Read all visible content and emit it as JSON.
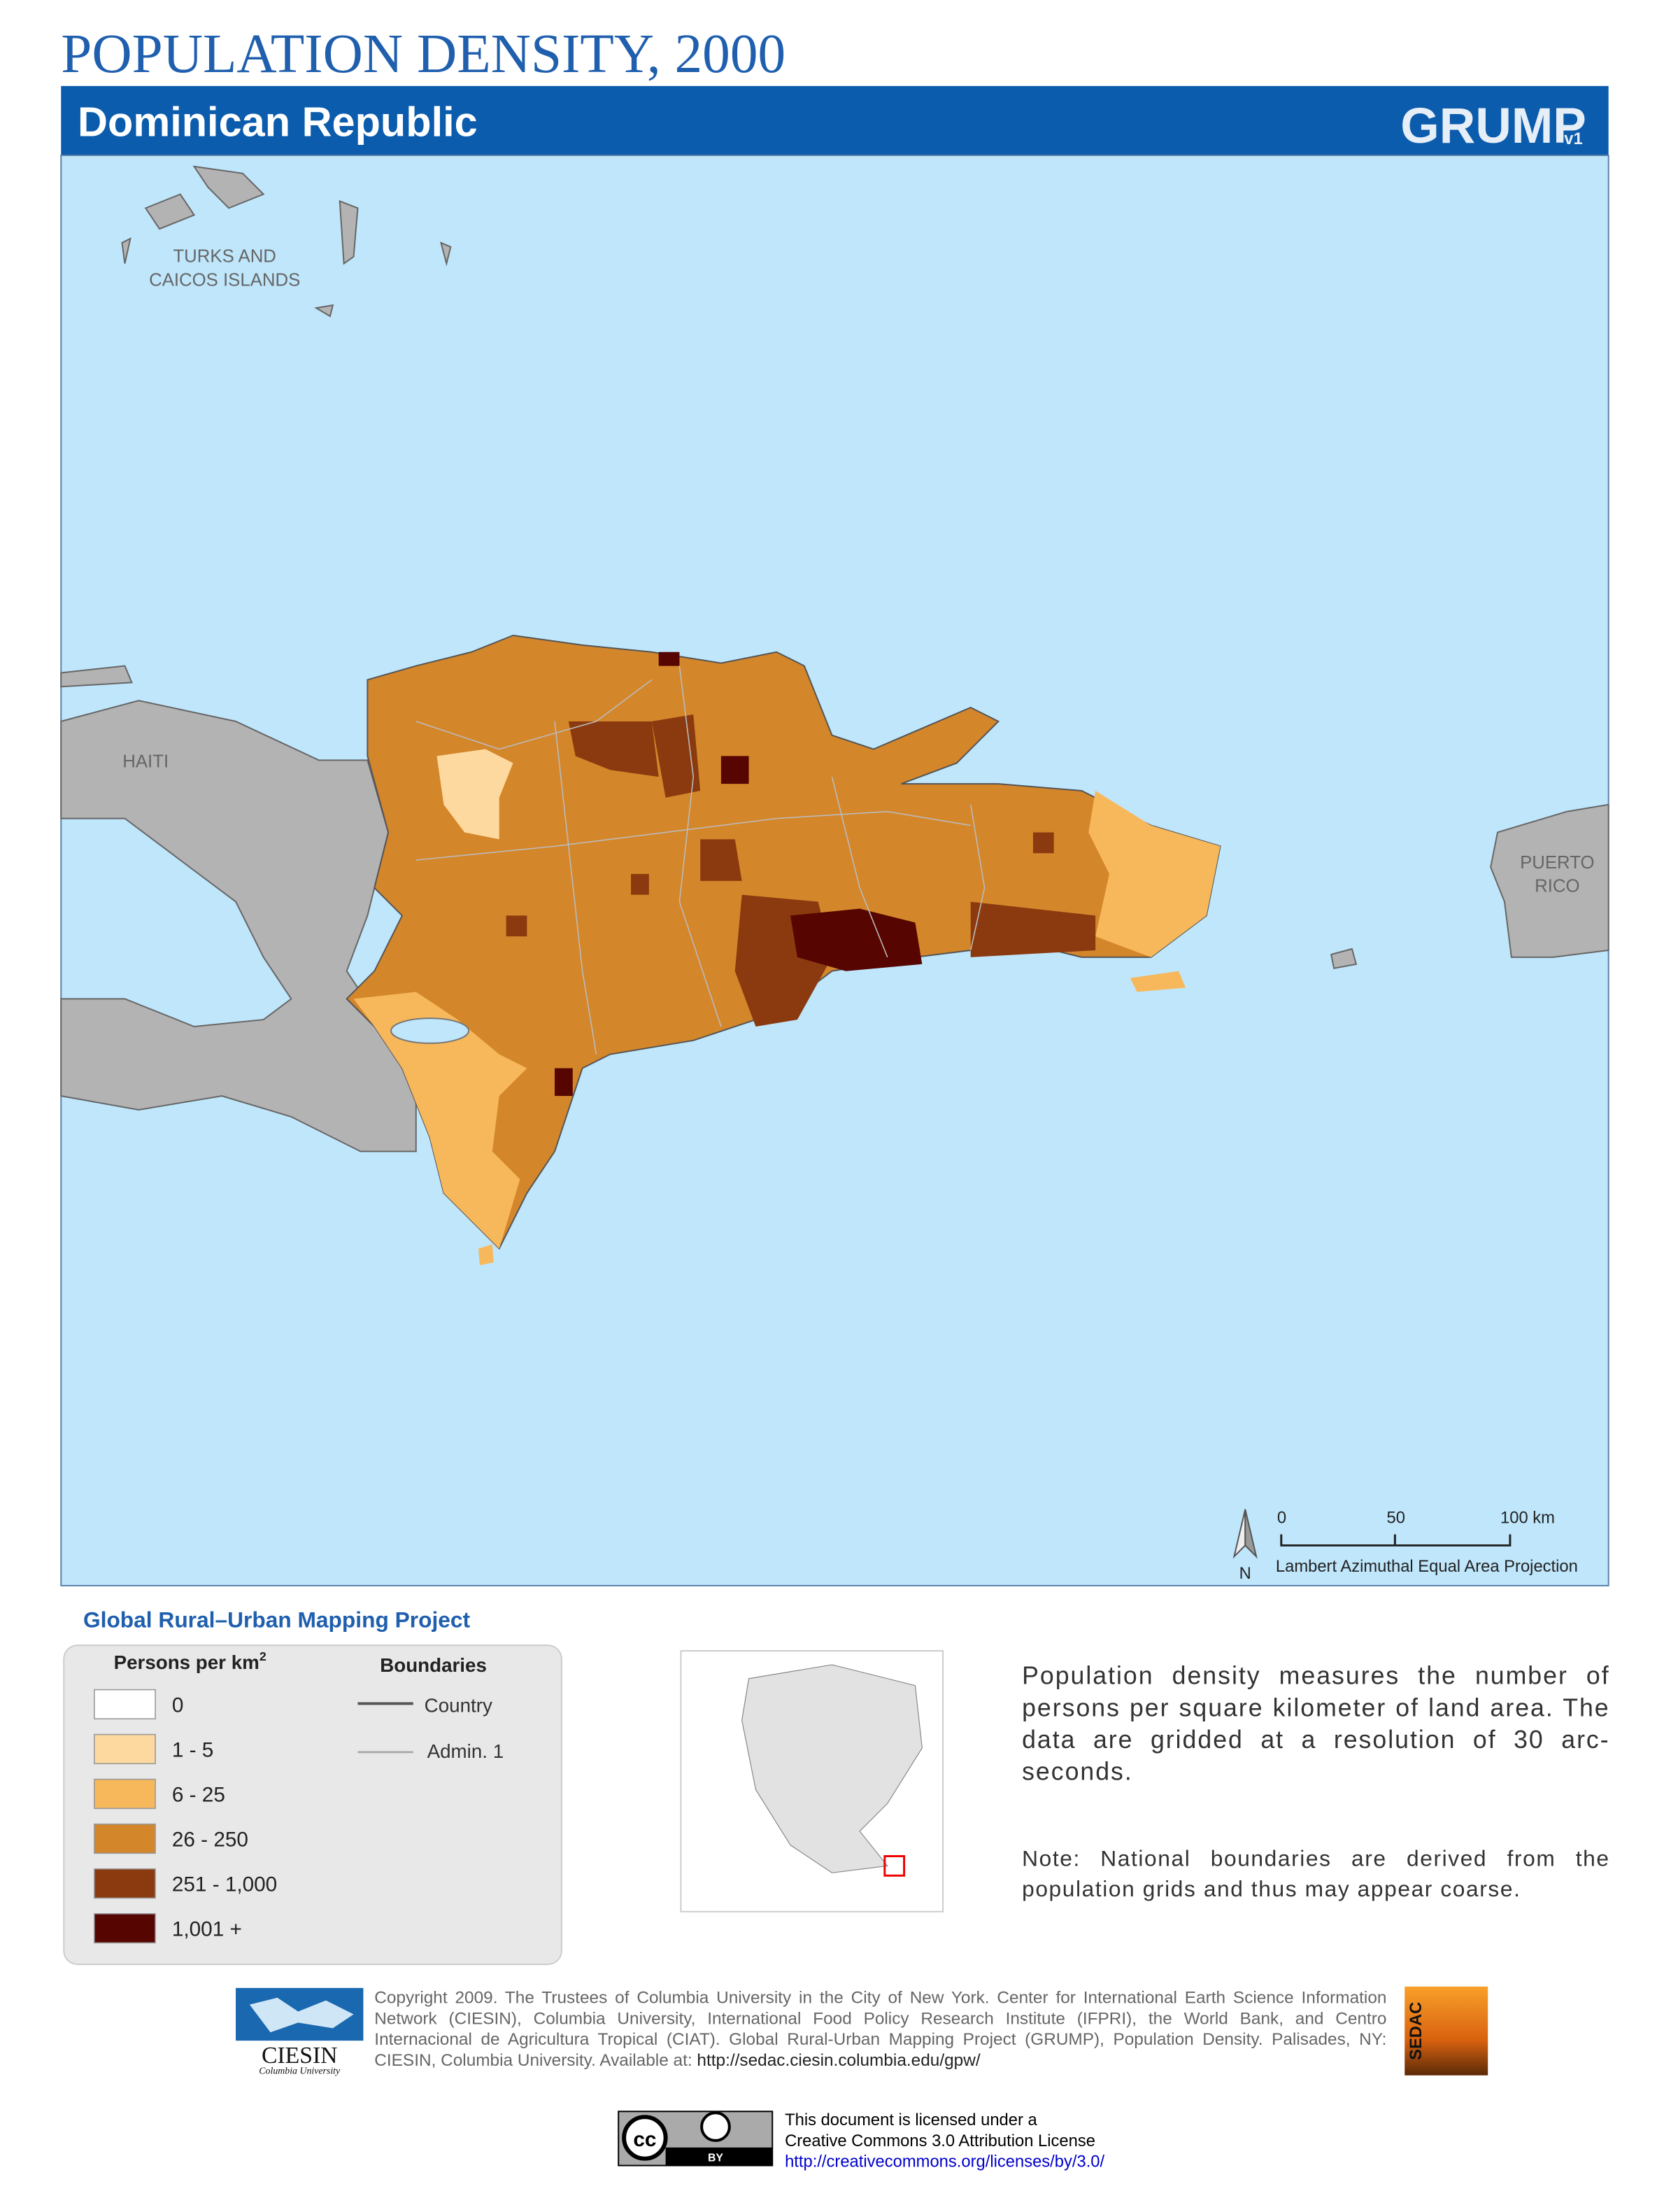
{
  "header": {
    "title": "POPULATION DENSITY, 2000",
    "country": "Dominican Republic",
    "logo": "GRUMP",
    "logo_version": "v1"
  },
  "map": {
    "labels": {
      "turks_caicos": [
        "TURKS AND",
        "CAICOS ISLANDS"
      ],
      "haiti": "HAITI",
      "puerto_rico": [
        "PUERTO",
        "RICO"
      ]
    },
    "north": "N",
    "scale": [
      "0",
      "50",
      "100 km"
    ],
    "projection": "Lambert Azimuthal Equal Area Projection"
  },
  "legend": {
    "project": "Global Rural–Urban Mapping Project",
    "density_title": "Persons per km",
    "density_superscript": "2",
    "classes": [
      {
        "label": "0",
        "color": "#ffffff"
      },
      {
        "label": "1 - 5",
        "color": "#fdd9a0"
      },
      {
        "label": "6 - 25",
        "color": "#f7b85c"
      },
      {
        "label": "26 - 250",
        "color": "#d4862a"
      },
      {
        "label": "251 - 1,000",
        "color": "#8b3a0f"
      },
      {
        "label": "1,001 +",
        "color": "#560500"
      }
    ],
    "boundaries_title": "Boundaries",
    "boundaries": [
      "Country",
      "Admin. 1"
    ]
  },
  "description": "Population density measures the number of persons per square kilometer of land area. The data are gridded at a resolution of 30 arc-seconds.",
  "note": "Note: National boundaries are derived from the population grids and thus may appear coarse.",
  "footer": {
    "ciesin": "CIESIN",
    "ciesin_sub": "Columbia University",
    "copyright": "Copyright 2009. The Trustees of Columbia University in the City of New York. Center for International Earth Science Information Network (CIESIN), Columbia University, International Food Policy Research Institute (IFPRI), the World Bank, and Centro Internacional de Agricultura Tropical (CIAT). Global Rural-Urban Mapping Project (GRUMP), Population Density. Palisades, NY: CIESIN, Columbia University. Available at:",
    "url": "http://sedac.ciesin.columbia.edu/gpw/",
    "sedac": "SEDAC",
    "cc": "cc",
    "by": "BY",
    "license": [
      "This document is licensed under a",
      "Creative Commons 3.0 Attribution License",
      "http://creativecommons.org/licenses/by/3.0/"
    ]
  }
}
